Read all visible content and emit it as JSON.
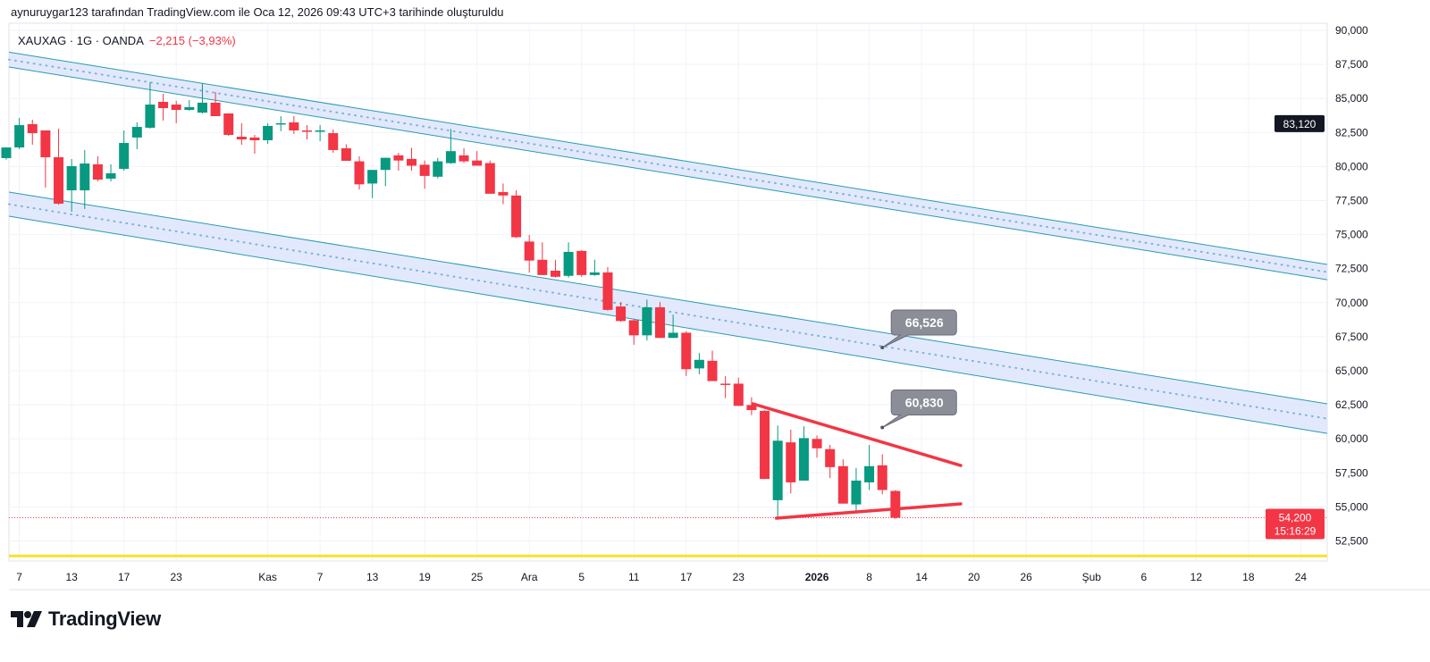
{
  "header": {
    "attribution": "aynuruygar123 tarafından TradingView.com ile Oca 12, 2026 09:43 UTC+3 tarihinde oluşturuldu"
  },
  "legend": {
    "symbol": "XAUXAG · 1G · OANDA",
    "change": "−2,215 (−3,93%)"
  },
  "logo": {
    "text": "TradingView"
  },
  "colors": {
    "up": "#089981",
    "down": "#f23645",
    "channel": "#2a9bb0",
    "channel_fill": "#dbe3fb",
    "triangle": "#f23645",
    "hline": "#f7e12a",
    "grid": "#f0f3fa"
  },
  "price_labels": {
    "crosshair": "83,120",
    "last_price": "54,200",
    "countdown": "15:16:29"
  },
  "chart_data": {
    "type": "candlestick",
    "title": "XAUXAG · 1G · OANDA",
    "ylim": [
      51020,
      90525
    ],
    "grid": true,
    "y_ticks": [
      90000,
      87500,
      85000,
      82500,
      80000,
      77500,
      75000,
      72500,
      70000,
      67500,
      65000,
      62500,
      60000,
      57500,
      55000,
      52500
    ],
    "y_tick_labels": [
      "90,000",
      "87,500",
      "85,000",
      "82,500",
      "80,000",
      "77,500",
      "75,000",
      "72,500",
      "70,000",
      "67,500",
      "65,000",
      "62,500",
      "60,000",
      "57,500",
      "55,000",
      "52,500"
    ],
    "x_ticks": [
      {
        "label": "7",
        "bar": 1
      },
      {
        "label": "13",
        "bar": 5
      },
      {
        "label": "17",
        "bar": 9
      },
      {
        "label": "23",
        "bar": 13
      },
      {
        "label": "Kas",
        "bar": 20
      },
      {
        "label": "7",
        "bar": 24
      },
      {
        "label": "13",
        "bar": 28
      },
      {
        "label": "19",
        "bar": 32
      },
      {
        "label": "25",
        "bar": 36
      },
      {
        "label": "Ara",
        "bar": 40
      },
      {
        "label": "5",
        "bar": 44
      },
      {
        "label": "11",
        "bar": 48
      },
      {
        "label": "17",
        "bar": 52
      },
      {
        "label": "23",
        "bar": 56
      },
      {
        "label": "2026",
        "bar": 62,
        "bold": true
      },
      {
        "label": "8",
        "bar": 66
      },
      {
        "label": "14",
        "bar": 70
      },
      {
        "label": "20",
        "bar": 74
      },
      {
        "label": "26",
        "bar": 78
      },
      {
        "label": "Şub",
        "bar": 83
      },
      {
        "label": "6",
        "bar": 87
      },
      {
        "label": "12",
        "bar": 91
      },
      {
        "label": "18",
        "bar": 95
      },
      {
        "label": "24",
        "bar": 99
      }
    ],
    "candles_ohlc": [
      [
        80620,
        81400,
        80500,
        81400
      ],
      [
        81400,
        83570,
        81270,
        83040
      ],
      [
        83110,
        83440,
        81600,
        82450
      ],
      [
        82650,
        82650,
        78450,
        80680
      ],
      [
        80680,
        82780,
        77200,
        77270
      ],
      [
        78250,
        80550,
        76680,
        80030
      ],
      [
        78250,
        81210,
        76880,
        80220
      ],
      [
        80160,
        80750,
        78910,
        79040
      ],
      [
        79110,
        80160,
        78910,
        79500
      ],
      [
        79830,
        82650,
        79700,
        81730
      ],
      [
        82130,
        83240,
        81270,
        82910
      ],
      [
        82850,
        86190,
        82780,
        84550
      ],
      [
        84750,
        85340,
        83370,
        84290
      ],
      [
        84550,
        84820,
        83180,
        84160
      ],
      [
        84160,
        84880,
        84090,
        84360
      ],
      [
        83960,
        86130,
        83900,
        84690
      ],
      [
        84690,
        85470,
        83700,
        83700
      ],
      [
        83900,
        83900,
        82260,
        82320
      ],
      [
        82190,
        83180,
        81600,
        81990
      ],
      [
        82130,
        82320,
        80940,
        81930
      ],
      [
        81930,
        83180,
        81670,
        82980
      ],
      [
        83110,
        83700,
        82590,
        83180
      ],
      [
        83240,
        83700,
        82390,
        82650
      ],
      [
        82650,
        83040,
        81990,
        82590
      ],
      [
        82590,
        83040,
        81860,
        82650
      ],
      [
        82450,
        82720,
        81010,
        81210
      ],
      [
        81340,
        81630,
        80420,
        80420
      ],
      [
        80380,
        80750,
        78310,
        78690
      ],
      [
        78750,
        79750,
        77680,
        79750
      ],
      [
        79750,
        80640,
        78560,
        80640
      ],
      [
        80820,
        81010,
        79690,
        80440
      ],
      [
        80560,
        81380,
        79690,
        80060
      ],
      [
        80130,
        80440,
        78370,
        79310
      ],
      [
        79250,
        80640,
        79130,
        80380
      ],
      [
        80250,
        82760,
        80190,
        81130
      ],
      [
        80820,
        81340,
        80250,
        80380
      ],
      [
        80440,
        81130,
        80060,
        80060
      ],
      [
        80250,
        80440,
        78000,
        78000
      ],
      [
        78120,
        78750,
        77240,
        77870
      ],
      [
        77870,
        78250,
        74740,
        74810
      ],
      [
        74490,
        74970,
        72210,
        73090
      ],
      [
        73150,
        74430,
        72030,
        72030
      ],
      [
        72350,
        73150,
        71840,
        71900
      ],
      [
        71970,
        74430,
        71840,
        73730
      ],
      [
        73800,
        73860,
        71900,
        72030
      ],
      [
        72030,
        73150,
        71970,
        72220
      ],
      [
        72220,
        72610,
        69410,
        69470
      ],
      [
        69720,
        70040,
        68590,
        68650
      ],
      [
        68710,
        68770,
        66910,
        67600
      ],
      [
        67600,
        70220,
        67220,
        69660
      ],
      [
        69660,
        70040,
        67410,
        67410
      ],
      [
        67410,
        69120,
        67410,
        67790
      ],
      [
        67790,
        67900,
        64610,
        65110
      ],
      [
        65170,
        66300,
        64740,
        65800
      ],
      [
        65730,
        66480,
        64240,
        64240
      ],
      [
        64050,
        64610,
        62980,
        63980
      ],
      [
        64050,
        64490,
        62420,
        62420
      ],
      [
        62480,
        63050,
        61740,
        62110
      ],
      [
        62050,
        62100,
        57050,
        57050
      ],
      [
        55490,
        60980,
        54110,
        59860
      ],
      [
        59740,
        60670,
        55990,
        56800
      ],
      [
        56930,
        60920,
        56930,
        60050
      ],
      [
        59990,
        60240,
        58610,
        59300
      ],
      [
        59240,
        59550,
        57110,
        57920
      ],
      [
        57990,
        58490,
        55240,
        55240
      ],
      [
        55180,
        57860,
        54610,
        56930
      ],
      [
        56800,
        59550,
        56240,
        57990
      ],
      [
        58050,
        58860,
        55920,
        56240
      ],
      [
        56170,
        56240,
        54110,
        54200
      ]
    ],
    "drawings": {
      "upper_channel": {
        "start_bar": 0,
        "end_bar": 101,
        "top": [
          88400,
          72810
        ],
        "bottom": [
          87310,
          71690
        ]
      },
      "lower_channel": {
        "start_bar": 0,
        "end_bar": 101,
        "top": [
          78120,
          62570
        ],
        "bottom": [
          76350,
          60400
        ]
      },
      "triangle_upper": {
        "bars": [
          57.1,
          73
        ],
        "prices": [
          62570,
          58040
        ]
      },
      "triangle_lower": {
        "bars": [
          58.9,
          73
        ],
        "prices": [
          54170,
          55220
        ]
      },
      "callouts": [
        {
          "label": "66,526",
          "bar": 67,
          "price": 66700
        },
        {
          "label": "60,830",
          "bar": 67,
          "price": 60830
        }
      ],
      "horizontal_line": {
        "price": 51400
      },
      "last_price_line": {
        "price": 54200
      }
    }
  }
}
